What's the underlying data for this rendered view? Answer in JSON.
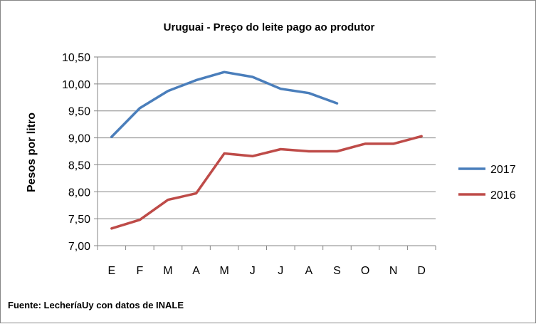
{
  "chart_data": {
    "type": "line",
    "title": "Uruguai - Preço do leite pago ao produtor",
    "ylabel": "Pesos por litro",
    "xlabel": "",
    "categories": [
      "E",
      "F",
      "M",
      "A",
      "M",
      "J",
      "J",
      "A",
      "S",
      "O",
      "N",
      "D"
    ],
    "ylim": [
      7.0,
      10.5
    ],
    "yticks": [
      "7,00",
      "7,50",
      "8,00",
      "8,50",
      "9,00",
      "9,50",
      "10,00",
      "10,50"
    ],
    "grid": true,
    "legend_position": "right",
    "series": [
      {
        "name": "2017",
        "color": "#4a7ebb",
        "values": [
          9.02,
          9.55,
          9.87,
          10.07,
          10.22,
          10.13,
          9.91,
          9.83,
          9.64,
          null,
          null,
          null
        ]
      },
      {
        "name": "2016",
        "color": "#be4b48",
        "values": [
          7.32,
          7.48,
          7.85,
          7.97,
          8.71,
          8.66,
          8.79,
          8.75,
          8.75,
          8.89,
          8.89,
          9.03
        ]
      }
    ],
    "source": "Fuente: LecheríaUy con datos de INALE"
  }
}
